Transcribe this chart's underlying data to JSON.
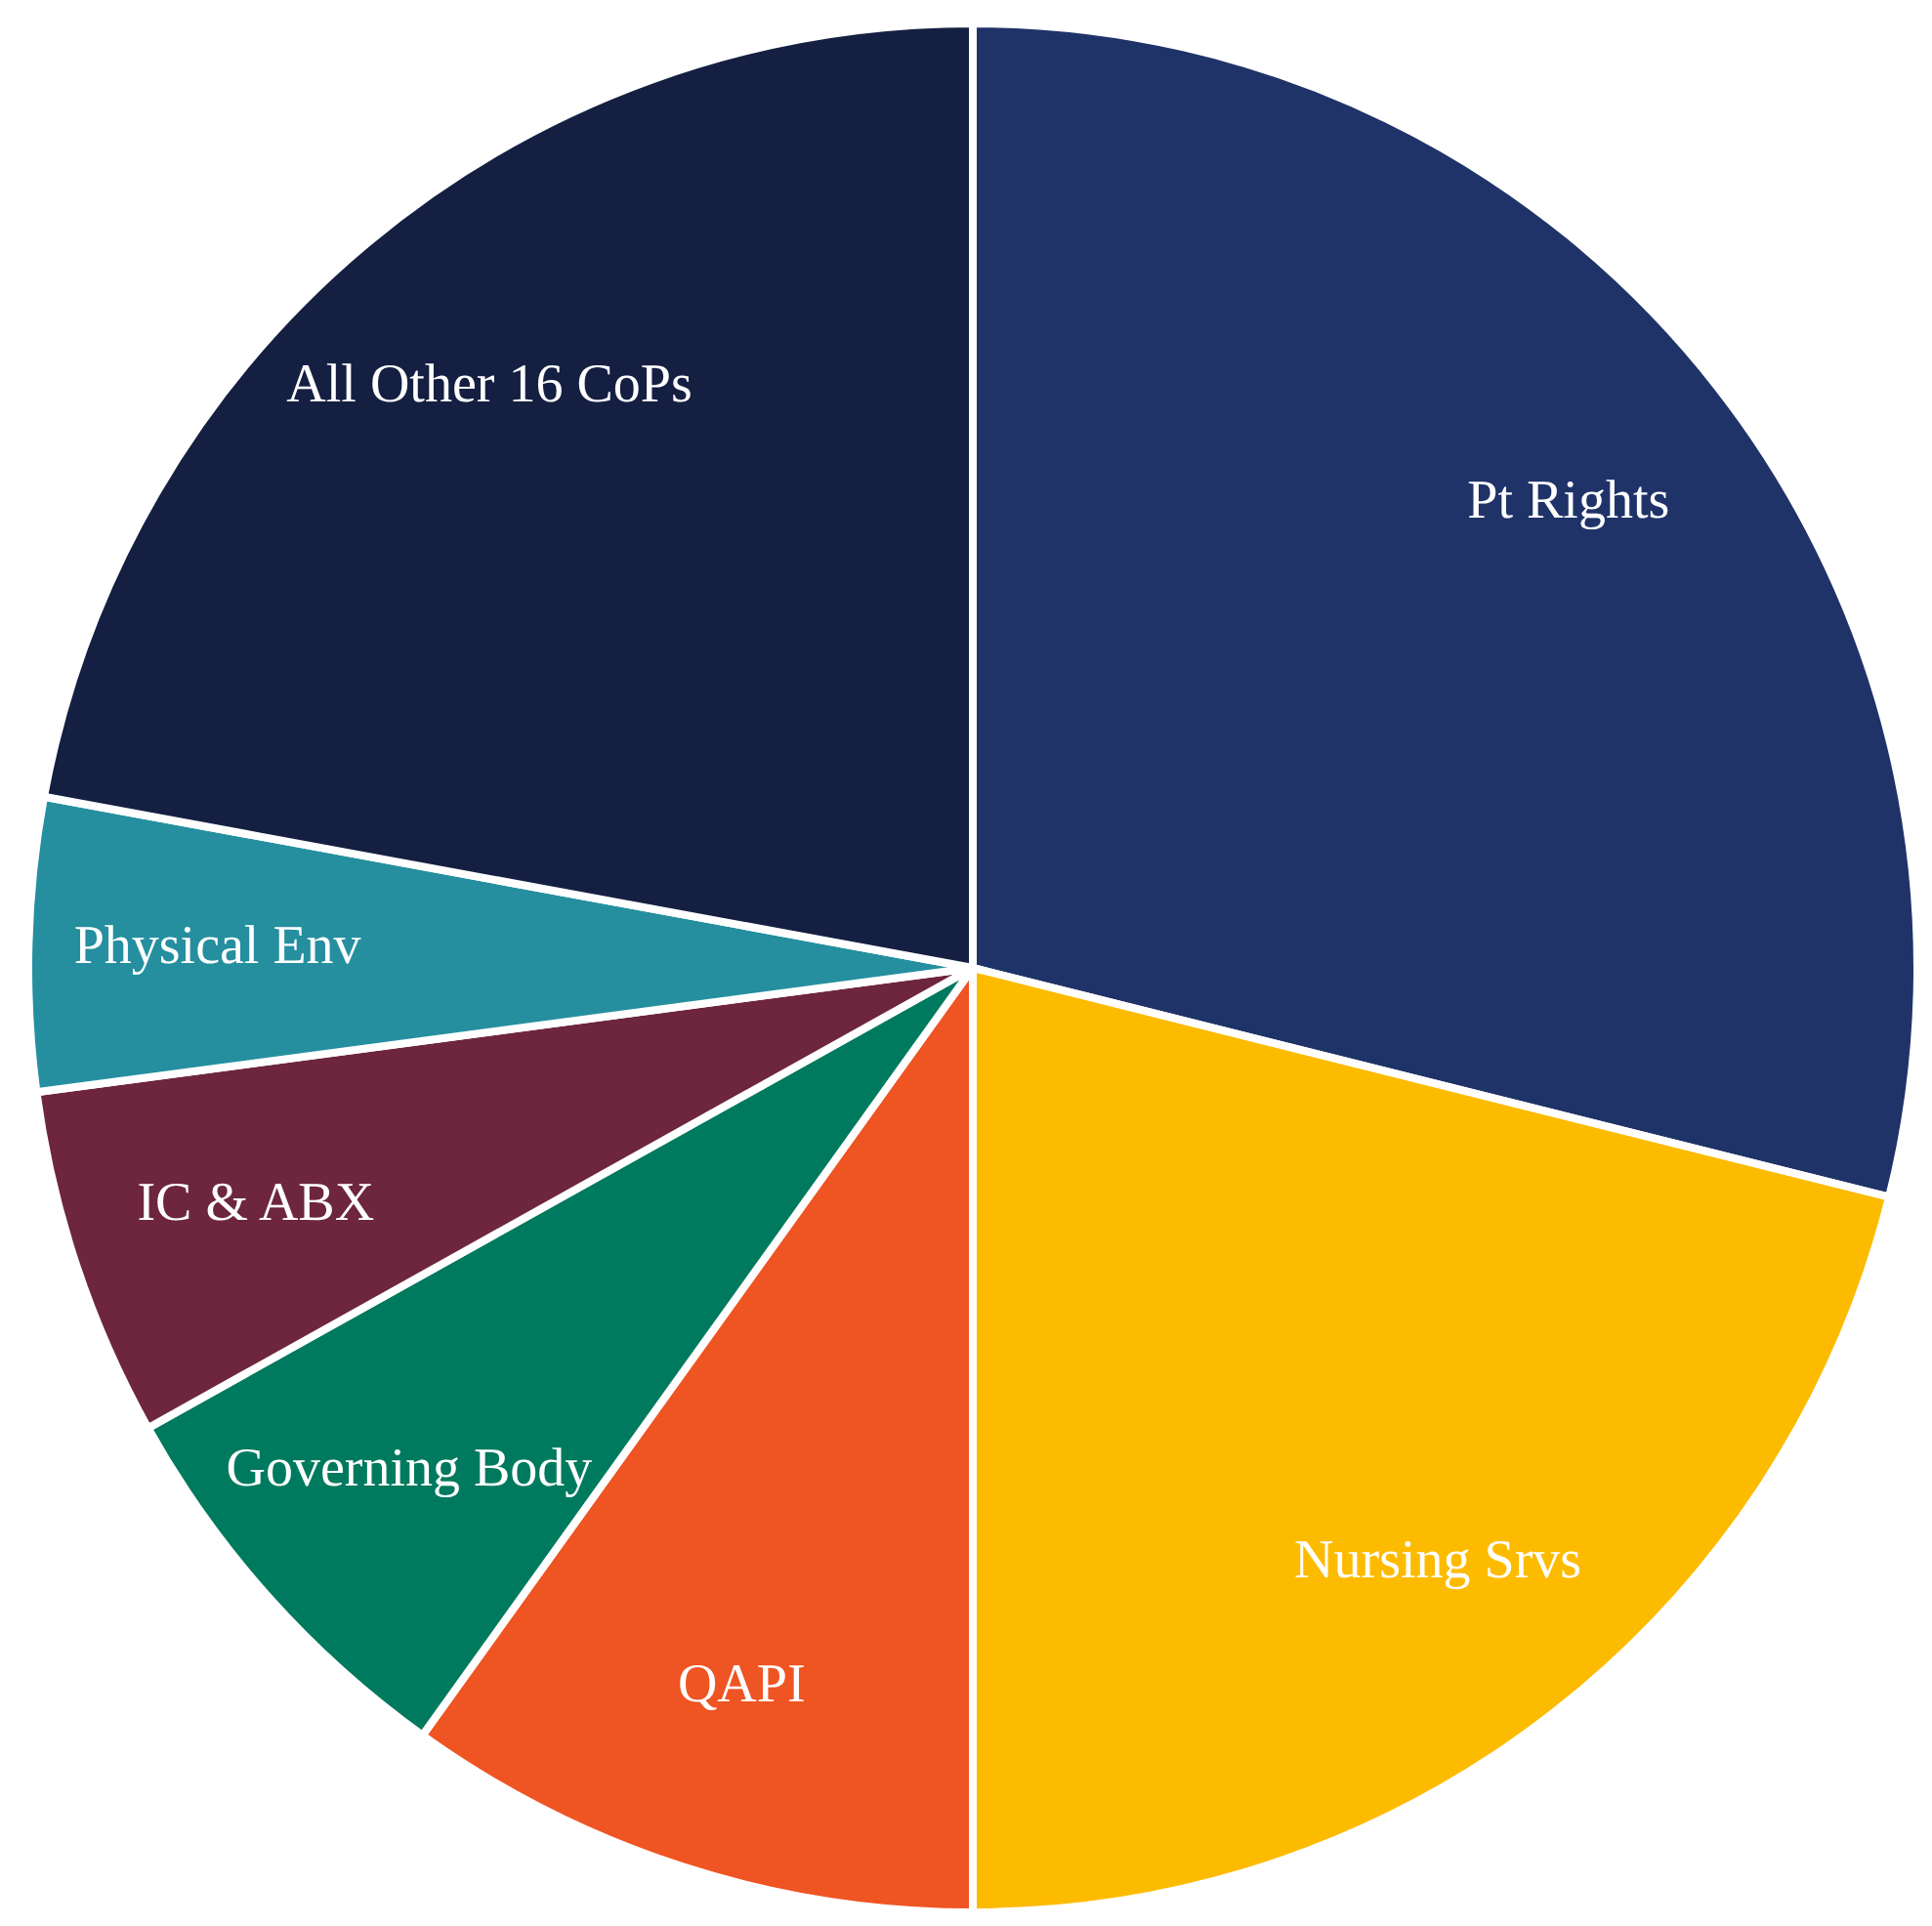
{
  "chart_data": {
    "type": "pie",
    "categories": [
      "Pt Rights",
      "Nursing Srvs",
      "QAPI",
      "Governing Body",
      "IC & ABX",
      "Physical Env",
      "All Other 16 CoPs"
    ],
    "values": [
      28.9,
      21.1,
      9.9,
      7.0,
      6.0,
      5.0,
      22.1
    ],
    "colors": [
      "#1f3369",
      "#fdbb00",
      "#ef5423",
      "#007a5e",
      "#6d263d",
      "#258f9f",
      "#141f42"
    ],
    "legend": false
  }
}
